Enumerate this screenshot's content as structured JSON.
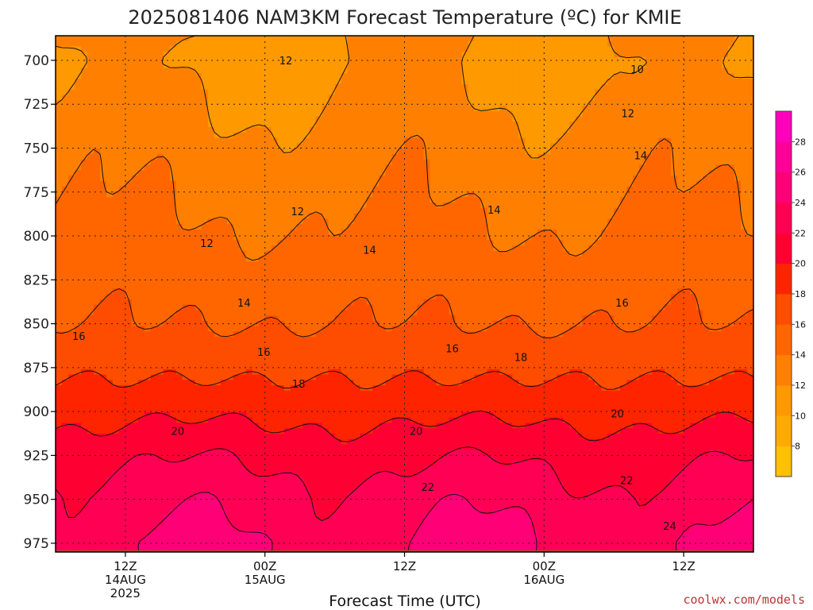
{
  "chart_data": {
    "type": "contour",
    "title": "2025081406 NAM3KM Forecast Temperature (ºC) for KMIE",
    "xlabel": "Forecast Time (UTC)",
    "ylabel": "",
    "credit": "coolwx.com/models",
    "y_axis": {
      "unit": "hPa",
      "range": [
        980,
        686
      ],
      "ticks": [
        700,
        725,
        750,
        775,
        800,
        825,
        850,
        875,
        900,
        925,
        950,
        975
      ],
      "grid": true
    },
    "x_axis": {
      "range_hours": [
        6,
        66
      ],
      "ticks": [
        {
          "hour": 12,
          "line1": "12Z",
          "line2": "14AUG",
          "line3": "2025"
        },
        {
          "hour": 24,
          "line1": "00Z",
          "line2": "15AUG",
          "line3": ""
        },
        {
          "hour": 36,
          "line1": "12Z",
          "line2": "",
          "line3": ""
        },
        {
          "hour": 48,
          "line1": "00Z",
          "line2": "16AUG",
          "line3": ""
        },
        {
          "hour": 60,
          "line1": "12Z",
          "line2": "",
          "line3": ""
        }
      ],
      "grid": true
    },
    "colorbar": {
      "levels": [
        6,
        8,
        10,
        12,
        14,
        16,
        18,
        20,
        22,
        24,
        26,
        28,
        30
      ],
      "labels": [
        8,
        10,
        12,
        14,
        16,
        18,
        20,
        22,
        24,
        26,
        28
      ],
      "colors": [
        "#ffc000",
        "#ffaa00",
        "#ff9900",
        "#ff8000",
        "#ff6600",
        "#ff4d00",
        "#ff2400",
        "#ff0033",
        "#ff0055",
        "#ff0077",
        "#ff0099",
        "#ff00bb"
      ]
    },
    "contour_labels": [
      {
        "text": "10",
        "hour": 56.0,
        "p": 705
      },
      {
        "text": "12",
        "hour": 25.8,
        "p": 700
      },
      {
        "text": "12",
        "hour": 55.2,
        "p": 730
      },
      {
        "text": "12",
        "hour": 26.8,
        "p": 786
      },
      {
        "text": "12",
        "hour": 19.0,
        "p": 804
      },
      {
        "text": "14",
        "hour": 56.3,
        "p": 754
      },
      {
        "text": "14",
        "hour": 43.7,
        "p": 785
      },
      {
        "text": "14",
        "hour": 33.0,
        "p": 808
      },
      {
        "text": "14",
        "hour": 22.2,
        "p": 838
      },
      {
        "text": "16",
        "hour": 8.0,
        "p": 857
      },
      {
        "text": "16",
        "hour": 23.9,
        "p": 866
      },
      {
        "text": "16",
        "hour": 40.1,
        "p": 864
      },
      {
        "text": "16",
        "hour": 54.7,
        "p": 838
      },
      {
        "text": "18",
        "hour": 26.9,
        "p": 884
      },
      {
        "text": "18",
        "hour": 46.0,
        "p": 869
      },
      {
        "text": "20",
        "hour": 16.5,
        "p": 911
      },
      {
        "text": "20",
        "hour": 37.0,
        "p": 911
      },
      {
        "text": "20",
        "hour": 54.3,
        "p": 901
      },
      {
        "text": "22",
        "hour": 38.0,
        "p": 943
      },
      {
        "text": "22",
        "hour": 55.1,
        "p": 939
      },
      {
        "text": "24",
        "hour": 58.8,
        "p": 965
      }
    ],
    "temperature_profile": [
      {
        "p": 700,
        "t": 11.5
      },
      {
        "p": 750,
        "t": 13.0
      },
      {
        "p": 800,
        "t": 14.3
      },
      {
        "p": 850,
        "t": 16.0
      },
      {
        "p": 875,
        "t": 17.5
      },
      {
        "p": 900,
        "t": 19.4
      },
      {
        "p": 925,
        "t": 21.5
      },
      {
        "p": 950,
        "t": 23.0
      },
      {
        "p": 975,
        "t": 23.9
      }
    ],
    "ground_color": "#a0522d"
  }
}
